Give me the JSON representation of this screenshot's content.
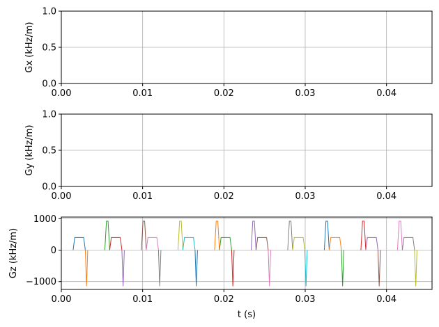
{
  "chart_data": [
    {
      "type": "line",
      "ylabel": "Gx (kHz/m)",
      "xlabel": "",
      "xlim": [
        0,
        0.0456
      ],
      "ylim": [
        0,
        1
      ],
      "xticks": [
        0,
        0.01,
        0.02,
        0.03,
        0.04
      ],
      "xtick_labels": [
        "0.00",
        "0.01",
        "0.02",
        "0.03",
        "0.04"
      ],
      "yticks": [
        0,
        0.5,
        1
      ],
      "ytick_labels": [
        "0.0",
        "0.5",
        "1.0"
      ],
      "grid": true,
      "series": []
    },
    {
      "type": "line",
      "ylabel": "Gy (kHz/m)",
      "xlabel": "",
      "xlim": [
        0,
        0.0456
      ],
      "ylim": [
        0,
        1
      ],
      "xticks": [
        0,
        0.01,
        0.02,
        0.03,
        0.04
      ],
      "xtick_labels": [
        "0.00",
        "0.01",
        "0.02",
        "0.03",
        "0.04"
      ],
      "yticks": [
        0,
        0.5,
        1
      ],
      "ytick_labels": [
        "0.0",
        "0.5",
        "1.0"
      ],
      "grid": true,
      "series": []
    },
    {
      "type": "line",
      "ylabel": "Gz (kHz/m)",
      "xlabel": "t (s)",
      "xlim": [
        0,
        0.0456
      ],
      "ylim": [
        -1250,
        1050
      ],
      "xticks": [
        0,
        0.01,
        0.02,
        0.03,
        0.04
      ],
      "xtick_labels": [
        "0.00",
        "0.01",
        "0.02",
        "0.03",
        "0.04"
      ],
      "yticks": [
        -1000,
        0,
        1000
      ],
      "ytick_labels": [
        "−1000",
        "0",
        "1000"
      ],
      "grid": true,
      "series": [
        {
          "color": "#1f77b4",
          "x": [
            0.00145,
            0.00165,
            0.00275,
            0.00295
          ],
          "y": [
            0,
            400,
            400,
            0
          ]
        },
        {
          "color": "#ff7f0e",
          "x": [
            0.00295,
            0.0031,
            0.00325
          ],
          "y": [
            0,
            -1150,
            0
          ]
        },
        {
          "color": "#2ca02c",
          "x": [
            0.00535,
            0.00555,
            0.00575,
            0.00595
          ],
          "y": [
            0,
            920,
            920,
            0
          ]
        },
        {
          "color": "#d62728",
          "x": [
            0.00595,
            0.00615,
            0.00725,
            0.00745
          ],
          "y": [
            0,
            400,
            400,
            0
          ]
        },
        {
          "color": "#9467bd",
          "x": [
            0.00745,
            0.0076,
            0.00775
          ],
          "y": [
            0,
            -1150,
            0
          ]
        },
        {
          "color": "#8c564b",
          "x": [
            0.00985,
            0.01005,
            0.01025,
            0.01045
          ],
          "y": [
            0,
            920,
            920,
            0
          ]
        },
        {
          "color": "#e377c2",
          "x": [
            0.01045,
            0.01065,
            0.01175,
            0.01195
          ],
          "y": [
            0,
            400,
            400,
            0
          ]
        },
        {
          "color": "#7f7f7f",
          "x": [
            0.01195,
            0.0121,
            0.01225
          ],
          "y": [
            0,
            -1150,
            0
          ]
        },
        {
          "color": "#bcbd22",
          "x": [
            0.01435,
            0.01455,
            0.01475,
            0.01495
          ],
          "y": [
            0,
            920,
            920,
            0
          ]
        },
        {
          "color": "#17becf",
          "x": [
            0.01495,
            0.01515,
            0.01625,
            0.01645
          ],
          "y": [
            0,
            400,
            400,
            0
          ]
        },
        {
          "color": "#1f77b4",
          "x": [
            0.01645,
            0.0166,
            0.01675
          ],
          "y": [
            0,
            -1150,
            0
          ]
        },
        {
          "color": "#ff7f0e",
          "x": [
            0.01885,
            0.01905,
            0.01925,
            0.01945
          ],
          "y": [
            0,
            920,
            920,
            0
          ]
        },
        {
          "color": "#2ca02c",
          "x": [
            0.01945,
            0.01965,
            0.02075,
            0.02095
          ],
          "y": [
            0,
            400,
            400,
            0
          ]
        },
        {
          "color": "#d62728",
          "x": [
            0.02095,
            0.0211,
            0.02125
          ],
          "y": [
            0,
            -1150,
            0
          ]
        },
        {
          "color": "#9467bd",
          "x": [
            0.02335,
            0.02355,
            0.02375,
            0.02395
          ],
          "y": [
            0,
            920,
            920,
            0
          ]
        },
        {
          "color": "#8c564b",
          "x": [
            0.02395,
            0.02415,
            0.02525,
            0.02545
          ],
          "y": [
            0,
            400,
            400,
            0
          ]
        },
        {
          "color": "#e377c2",
          "x": [
            0.02545,
            0.0256,
            0.02575
          ],
          "y": [
            0,
            -1150,
            0
          ]
        },
        {
          "color": "#7f7f7f",
          "x": [
            0.02785,
            0.02805,
            0.02825,
            0.02845
          ],
          "y": [
            0,
            920,
            920,
            0
          ]
        },
        {
          "color": "#bcbd22",
          "x": [
            0.02845,
            0.02865,
            0.02975,
            0.02995
          ],
          "y": [
            0,
            400,
            400,
            0
          ]
        },
        {
          "color": "#17becf",
          "x": [
            0.02995,
            0.0301,
            0.03025
          ],
          "y": [
            0,
            -1150,
            0
          ]
        },
        {
          "color": "#1f77b4",
          "x": [
            0.03235,
            0.03255,
            0.03275,
            0.03295
          ],
          "y": [
            0,
            920,
            920,
            0
          ]
        },
        {
          "color": "#ff7f0e",
          "x": [
            0.03295,
            0.03315,
            0.03425,
            0.03445
          ],
          "y": [
            0,
            400,
            400,
            0
          ]
        },
        {
          "color": "#2ca02c",
          "x": [
            0.03445,
            0.0346,
            0.03475
          ],
          "y": [
            0,
            -1150,
            0
          ]
        },
        {
          "color": "#d62728",
          "x": [
            0.03685,
            0.03705,
            0.03725,
            0.03745
          ],
          "y": [
            0,
            920,
            920,
            0
          ]
        },
        {
          "color": "#9467bd",
          "x": [
            0.03745,
            0.03765,
            0.03875,
            0.03895
          ],
          "y": [
            0,
            400,
            400,
            0
          ]
        },
        {
          "color": "#8c564b",
          "x": [
            0.03895,
            0.0391,
            0.03925
          ],
          "y": [
            0,
            -1150,
            0
          ]
        },
        {
          "color": "#e377c2",
          "x": [
            0.04135,
            0.04155,
            0.04175,
            0.04195
          ],
          "y": [
            0,
            920,
            920,
            0
          ]
        },
        {
          "color": "#7f7f7f",
          "x": [
            0.04195,
            0.04215,
            0.04325,
            0.04345
          ],
          "y": [
            0,
            400,
            400,
            0
          ]
        },
        {
          "color": "#bcbd22",
          "x": [
            0.04345,
            0.0436,
            0.04375
          ],
          "y": [
            0,
            -1150,
            0
          ]
        }
      ]
    }
  ]
}
